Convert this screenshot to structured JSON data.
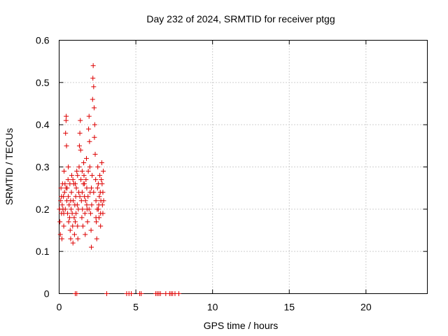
{
  "chart_data": {
    "type": "scatter",
    "title": "Day 232 of 2024, SRMTID for receiver ptgg",
    "xlabel": "GPS time / hours",
    "ylabel": "SRMTID / TECUs",
    "xlim": [
      0,
      24
    ],
    "ylim": [
      0,
      0.6
    ],
    "xticks": [
      0,
      5,
      10,
      15,
      20
    ],
    "yticks": [
      0,
      0.1,
      0.2,
      0.3,
      0.4,
      0.5,
      0.6
    ],
    "xtick_labels": [
      "0",
      "5",
      "10",
      "15",
      "20"
    ],
    "ytick_labels": [
      "0",
      "0.1",
      "0.2",
      "0.3",
      "0.4",
      "0.5",
      "0.6"
    ],
    "grid": true,
    "legend": "none",
    "marker": "+",
    "color": "#dd0000",
    "series": [
      {
        "name": "SRMTID",
        "points": [
          [
            0.02,
            0.2
          ],
          [
            0.05,
            0.17
          ],
          [
            0.08,
            0.14
          ],
          [
            0.1,
            0.22
          ],
          [
            0.12,
            0.25
          ],
          [
            0.15,
            0.19
          ],
          [
            0.18,
            0.13
          ],
          [
            0.2,
            0.21
          ],
          [
            0.22,
            0.26
          ],
          [
            0.25,
            0.2
          ],
          [
            0.28,
            0.23
          ],
          [
            0.3,
            0.19
          ],
          [
            0.32,
            0.29
          ],
          [
            0.35,
            0.24
          ],
          [
            0.38,
            0.26
          ],
          [
            0.4,
            0.2
          ],
          [
            0.42,
            0.38
          ],
          [
            0.45,
            0.41
          ],
          [
            0.46,
            0.42
          ],
          [
            0.48,
            0.35
          ],
          [
            0.5,
            0.22
          ],
          [
            0.52,
            0.25
          ],
          [
            0.55,
            0.19
          ],
          [
            0.58,
            0.27
          ],
          [
            0.6,
            0.23
          ],
          [
            0.62,
            0.17
          ],
          [
            0.65,
            0.21
          ],
          [
            0.68,
            0.18
          ],
          [
            0.7,
            0.26
          ],
          [
            0.72,
            0.15
          ],
          [
            0.75,
            0.13
          ],
          [
            0.78,
            0.2
          ],
          [
            0.8,
            0.24
          ],
          [
            0.82,
            0.28
          ],
          [
            0.85,
            0.19
          ],
          [
            0.88,
            0.16
          ],
          [
            0.9,
            0.12
          ],
          [
            0.92,
            0.22
          ],
          [
            0.95,
            0.26
          ],
          [
            0.98,
            0.18
          ],
          [
            1.0,
            0.14
          ],
          [
            1.02,
            0.21
          ],
          [
            1.05,
            0.17
          ],
          [
            1.08,
            0.23
          ],
          [
            1.1,
            0.19
          ],
          [
            1.12,
            0.25
          ],
          [
            1.15,
            0.29
          ],
          [
            1.18,
            0.21
          ],
          [
            1.2,
            0.16
          ],
          [
            1.22,
            0.13
          ],
          [
            1.25,
            0.2
          ],
          [
            1.28,
            0.24
          ],
          [
            1.3,
            0.3
          ],
          [
            1.32,
            0.35
          ],
          [
            1.35,
            0.38
          ],
          [
            1.38,
            0.41
          ],
          [
            1.4,
            0.34
          ],
          [
            1.42,
            0.27
          ],
          [
            1.45,
            0.22
          ],
          [
            1.48,
            0.18
          ],
          [
            1.5,
            0.24
          ],
          [
            1.52,
            0.2
          ],
          [
            1.55,
            0.16
          ],
          [
            1.58,
            0.26
          ],
          [
            1.6,
            0.31
          ],
          [
            1.62,
            0.28
          ],
          [
            1.65,
            0.23
          ],
          [
            1.68,
            0.19
          ],
          [
            1.7,
            0.14
          ],
          [
            1.72,
            0.22
          ],
          [
            1.75,
            0.27
          ],
          [
            1.78,
            0.32
          ],
          [
            1.8,
            0.25
          ],
          [
            1.82,
            0.2
          ],
          [
            1.85,
            0.17
          ],
          [
            1.88,
            0.23
          ],
          [
            1.9,
            0.29
          ],
          [
            1.92,
            0.39
          ],
          [
            1.95,
            0.42
          ],
          [
            1.98,
            0.36
          ],
          [
            2.0,
            0.3
          ],
          [
            2.02,
            0.24
          ],
          [
            2.05,
            0.19
          ],
          [
            2.08,
            0.15
          ],
          [
            2.1,
            0.11
          ],
          [
            2.12,
            0.21
          ],
          [
            2.15,
            0.28
          ],
          [
            2.18,
            0.46
          ],
          [
            2.2,
            0.51
          ],
          [
            2.22,
            0.54
          ],
          [
            2.25,
            0.49
          ],
          [
            2.28,
            0.44
          ],
          [
            2.3,
            0.37
          ],
          [
            2.32,
            0.4
          ],
          [
            2.35,
            0.33
          ],
          [
            2.38,
            0.27
          ],
          [
            2.4,
            0.22
          ],
          [
            2.42,
            0.17
          ],
          [
            2.45,
            0.13
          ],
          [
            2.48,
            0.2
          ],
          [
            2.5,
            0.25
          ],
          [
            2.52,
            0.3
          ],
          [
            2.55,
            0.26
          ],
          [
            2.58,
            0.21
          ],
          [
            2.6,
            0.18
          ],
          [
            2.62,
            0.23
          ],
          [
            2.65,
            0.28
          ],
          [
            2.68,
            0.24
          ],
          [
            2.7,
            0.19
          ],
          [
            2.72,
            0.22
          ],
          [
            2.75,
            0.27
          ],
          [
            2.78,
            0.31
          ],
          [
            2.8,
            0.26
          ],
          [
            2.82,
            0.21
          ],
          [
            2.85,
            0.24
          ],
          [
            2.88,
            0.29
          ],
          [
            2.9,
            0.22
          ],
          [
            0.3,
            0.16
          ],
          [
            0.6,
            0.3
          ],
          [
            0.9,
            0.27
          ],
          [
            1.2,
            0.28
          ],
          [
            1.5,
            0.29
          ],
          [
            1.8,
            0.21
          ],
          [
            2.1,
            0.25
          ],
          [
            2.4,
            0.18
          ],
          [
            2.7,
            0.16
          ],
          [
            0.15,
            0.23
          ],
          [
            0.45,
            0.25
          ],
          [
            0.75,
            0.22
          ],
          [
            1.05,
            0.26
          ],
          [
            1.35,
            0.23
          ],
          [
            1.65,
            0.26
          ],
          [
            1.95,
            0.2
          ],
          [
            2.25,
            0.24
          ],
          [
            2.55,
            0.2
          ],
          [
            2.85,
            0.19
          ],
          [
            1.05,
            0.0
          ],
          [
            1.15,
            0.0
          ],
          [
            3.1,
            0.0
          ],
          [
            4.4,
            0.0
          ],
          [
            4.55,
            0.0
          ],
          [
            4.7,
            0.0
          ],
          [
            5.25,
            0.0
          ],
          [
            5.35,
            0.0
          ],
          [
            6.3,
            0.0
          ],
          [
            6.4,
            0.0
          ],
          [
            6.5,
            0.0
          ],
          [
            6.6,
            0.0
          ],
          [
            6.95,
            0.0
          ],
          [
            7.2,
            0.0
          ],
          [
            7.3,
            0.0
          ],
          [
            7.4,
            0.0
          ],
          [
            7.55,
            0.0
          ],
          [
            7.8,
            0.0
          ]
        ]
      }
    ]
  }
}
